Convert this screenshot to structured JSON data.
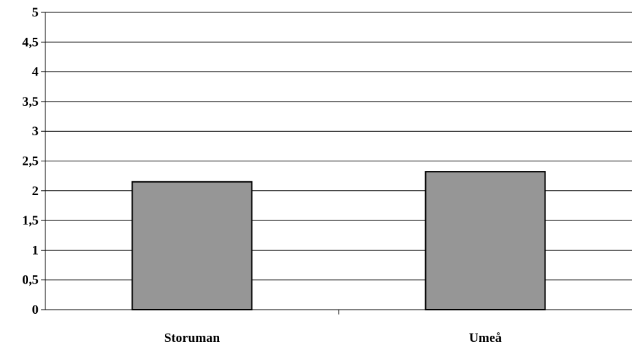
{
  "chart_data": {
    "type": "bar",
    "title": "",
    "xlabel": "",
    "ylabel": "",
    "categories": [
      "Storuman",
      "Umeå"
    ],
    "values": [
      2.15,
      2.32
    ],
    "ylim": [
      0,
      5
    ],
    "yticks": [
      "0",
      "0,5",
      "1",
      "1,5",
      "2",
      "2,5",
      "3",
      "3,5",
      "4",
      "4,5",
      "5"
    ],
    "grid": true,
    "legend": "none",
    "colors": {
      "bar_fill": "#969696",
      "bar_stroke": "#000000",
      "grid": "#000000",
      "axis": "#000000"
    }
  }
}
